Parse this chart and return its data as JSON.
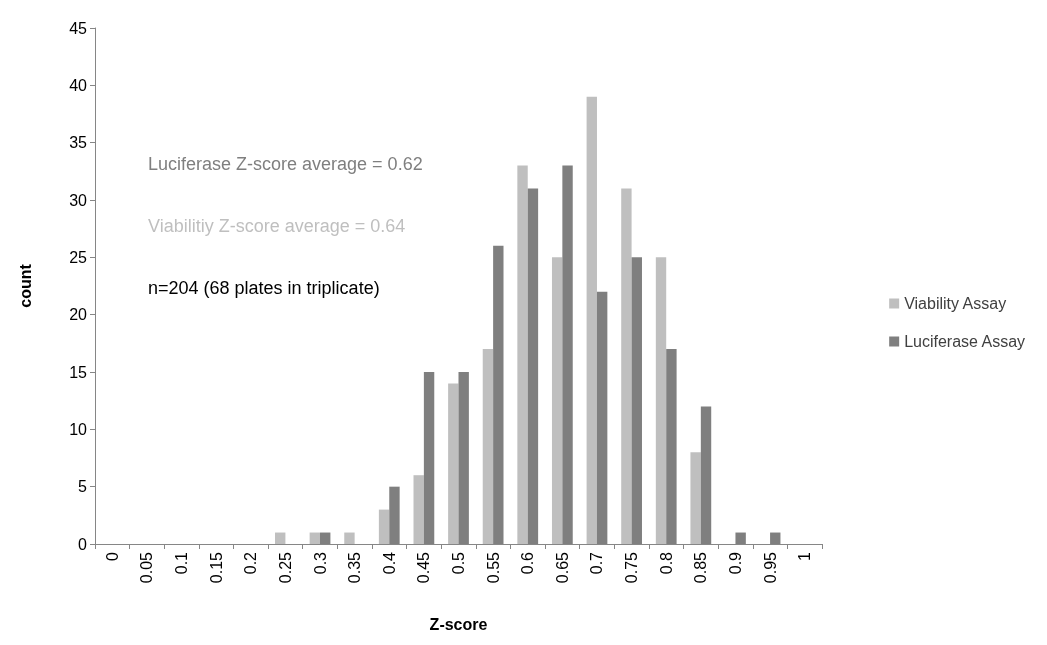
{
  "chart_data": {
    "type": "bar",
    "xlabel": "Z-score",
    "ylabel": "count",
    "categories": [
      "0",
      "0.05",
      "0.1",
      "0.15",
      "0.2",
      "0.25",
      "0.3",
      "0.35",
      "0.4",
      "0.45",
      "0.5",
      "0.55",
      "0.6",
      "0.65",
      "0.7",
      "0.75",
      "0.8",
      "0.85",
      "0.9",
      "0.95",
      "1"
    ],
    "series": [
      {
        "name": "Viability Assay",
        "color": "#bfbfbf",
        "values": [
          0,
          0,
          0,
          0,
          0,
          1,
          1,
          1,
          3,
          6,
          14,
          17,
          33,
          25,
          39,
          31,
          25,
          8,
          0,
          0,
          0
        ]
      },
      {
        "name": "Luciferase Assay",
        "color": "#7f7f7f",
        "values": [
          0,
          0,
          0,
          0,
          0,
          0,
          1,
          0,
          5,
          15,
          15,
          26,
          31,
          33,
          22,
          25,
          17,
          12,
          1,
          1,
          0
        ]
      }
    ],
    "annotations": [
      "Luciferase Z-score average = 0.62",
      "Viabilitiy Z-score average = 0.64",
      "n=204 (68 plates in triplicate)"
    ],
    "ylim": [
      0,
      45
    ],
    "yticks": [
      0,
      5,
      10,
      15,
      20,
      25,
      30,
      35,
      40,
      45
    ],
    "grid": false,
    "legend": "right"
  }
}
